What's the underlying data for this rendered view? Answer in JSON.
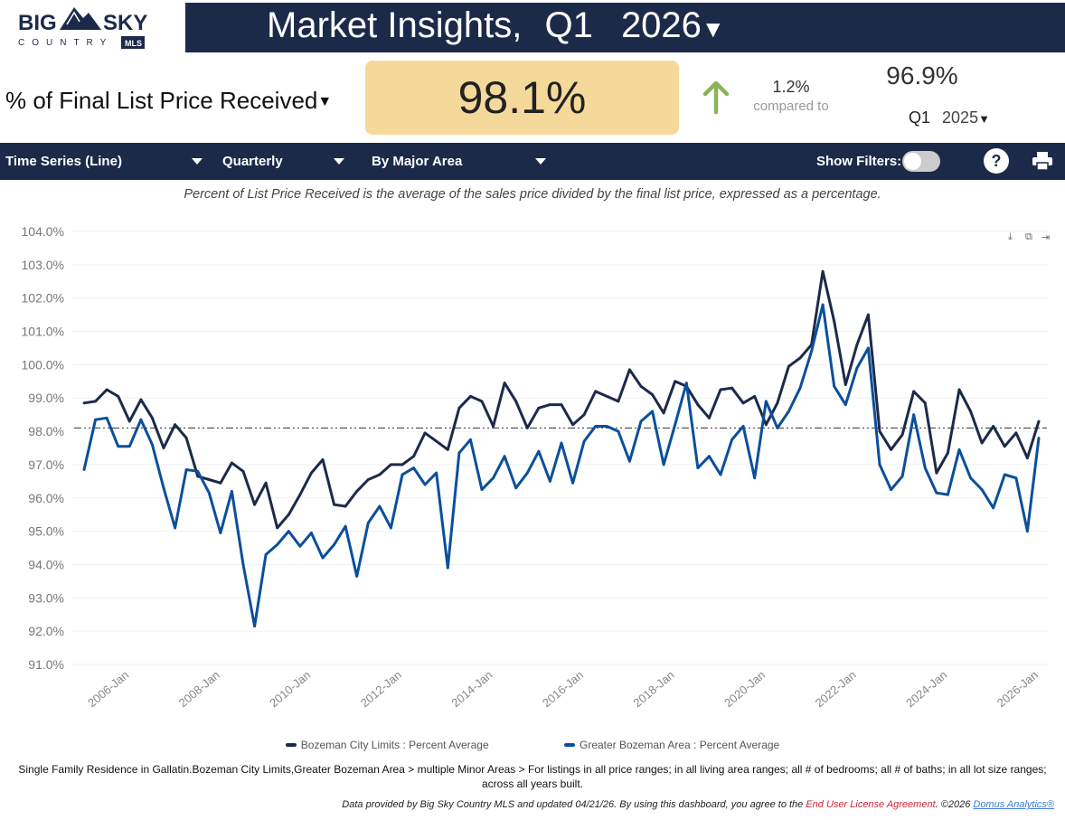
{
  "header": {
    "logo_text": "BIG SKY COUNTRY MLS",
    "title": "Market Insights,",
    "quarter": "Q1",
    "year": "2026"
  },
  "metric": {
    "label": "% of Final List Price Received",
    "value": "98.1%",
    "change": "1.2%",
    "compared_to": "compared to",
    "prev_value": "96.9%",
    "prev_quarter": "Q1",
    "prev_year": "2025",
    "arrow_color": "#8bb35a"
  },
  "toolbar": {
    "chart_type": "Time Series (Line)",
    "period": "Quarterly",
    "grouping": "By Major Area",
    "show_filters": "Show Filters:",
    "show_filters_on": false
  },
  "caption": "Percent of List Price Received is the average of the sales price divided by the final list price, expressed as a percentage.",
  "chart_data": {
    "type": "line",
    "title": "",
    "xlabel": "",
    "ylabel": "",
    "ylim": [
      91,
      104
    ],
    "yticks": [
      "91.0%",
      "92.0%",
      "93.0%",
      "94.0%",
      "95.0%",
      "96.0%",
      "97.0%",
      "98.0%",
      "99.0%",
      "100.0%",
      "101.0%",
      "102.0%",
      "103.0%",
      "104.0%"
    ],
    "x_start": "2005 Q1",
    "x_end": "2026 Q1",
    "xtick_labels": [
      "2006-Jan",
      "2008-Jan",
      "2010-Jan",
      "2012-Jan",
      "2014-Jan",
      "2016-Jan",
      "2018-Jan",
      "2020-Jan",
      "2022-Jan",
      "2024-Jan",
      "2026-Jan"
    ],
    "reference_line": 98.1,
    "grid": true,
    "legend_position": "bottom",
    "series": [
      {
        "name": "Bozeman City Limits : Percent Average",
        "color": "#1c2a4a",
        "values": [
          98.85,
          98.9,
          99.25,
          99.05,
          98.3,
          98.95,
          98.4,
          97.5,
          98.2,
          97.8,
          96.65,
          96.55,
          96.45,
          97.05,
          96.8,
          95.8,
          96.45,
          95.1,
          95.5,
          96.1,
          96.75,
          97.15,
          95.8,
          95.75,
          96.2,
          96.55,
          96.7,
          97.0,
          97.0,
          97.25,
          97.95,
          97.7,
          97.45,
          98.7,
          99.05,
          98.9,
          98.15,
          99.45,
          98.9,
          98.1,
          98.7,
          98.8,
          98.8,
          98.2,
          98.5,
          99.2,
          99.05,
          98.9,
          99.85,
          99.35,
          99.1,
          98.55,
          99.5,
          99.35,
          98.8,
          98.4,
          99.25,
          99.3,
          98.85,
          99.05,
          98.2,
          98.85,
          99.95,
          100.2,
          100.6,
          102.8,
          101.3,
          99.4,
          100.6,
          101.5,
          98.0,
          97.45,
          97.9,
          99.2,
          98.85,
          96.75,
          97.35,
          99.25,
          98.6,
          97.65,
          98.15,
          97.55,
          97.95,
          97.2,
          98.3
        ]
      },
      {
        "name": "Greater Bozeman Area : Percent Average",
        "color": "#0b4f9c",
        "values": [
          96.85,
          98.35,
          98.4,
          97.55,
          97.55,
          98.35,
          97.6,
          96.3,
          95.1,
          96.85,
          96.8,
          96.15,
          94.95,
          96.2,
          94.0,
          92.15,
          94.3,
          94.6,
          95.0,
          94.55,
          94.95,
          94.2,
          94.6,
          95.15,
          93.65,
          95.25,
          95.75,
          95.1,
          96.7,
          96.9,
          96.4,
          96.75,
          93.9,
          97.35,
          97.75,
          96.25,
          96.6,
          97.25,
          96.3,
          96.75,
          97.4,
          96.5,
          97.65,
          96.45,
          97.7,
          98.15,
          98.15,
          98.0,
          97.1,
          98.3,
          98.6,
          97.0,
          98.2,
          99.45,
          96.9,
          97.25,
          96.7,
          97.75,
          98.15,
          96.6,
          98.9,
          98.1,
          98.6,
          99.3,
          100.4,
          101.8,
          99.35,
          98.8,
          99.9,
          100.5,
          97.0,
          96.25,
          96.65,
          98.5,
          96.9,
          96.15,
          96.1,
          97.45,
          96.6,
          96.25,
          95.7,
          96.7,
          96.6,
          95.0,
          97.8
        ]
      }
    ]
  },
  "footnote": "Single Family Residence in Gallatin.Bozeman City Limits,Greater Bozeman Area > multiple Minor Areas > For listings in all price ranges; in all living area ranges; all # of bedrooms; all # of baths; in all lot size ranges; across all years built.",
  "source": {
    "text": "Data provided by Big Sky Country MLS and updated 04/21/26.  By using this dashboard, you agree to the ",
    "eula": "End User License Agreement",
    "after": ".  ©2026 ",
    "domus": "Domus Analytics®"
  }
}
